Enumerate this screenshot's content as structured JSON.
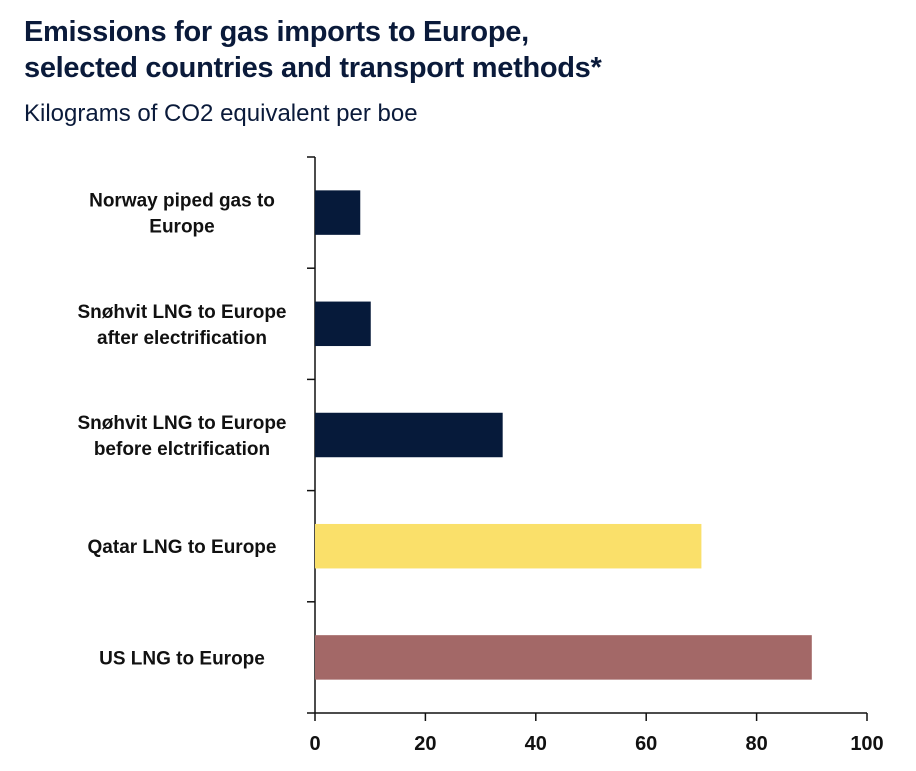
{
  "chart_data": {
    "type": "bar",
    "orientation": "horizontal",
    "title": "Emissions for gas imports to Europe, selected countries and transport methods*",
    "title_lines": [
      "Emissions for gas imports to Europe,",
      "selected countries and transport methods*"
    ],
    "subtitle": "Kilograms of CO2 equivalent per boe",
    "categories": [
      [
        "Norway piped gas to",
        "Europe"
      ],
      [
        "Snøhvit LNG to Europe",
        "after electrification"
      ],
      [
        "Snøhvit LNG to Europe",
        "before elctrification"
      ],
      [
        "Qatar LNG to Europe"
      ],
      [
        "US LNG to Europe"
      ]
    ],
    "values": [
      8.2,
      10.1,
      34,
      70,
      90
    ],
    "colors": [
      "#061a3a",
      "#061a3a",
      "#061a3a",
      "#fae06a",
      "#a36867"
    ],
    "xlim": [
      0,
      100
    ],
    "xticks": [
      "0",
      "20",
      "40",
      "60",
      "80",
      "100"
    ],
    "grid": false
  }
}
